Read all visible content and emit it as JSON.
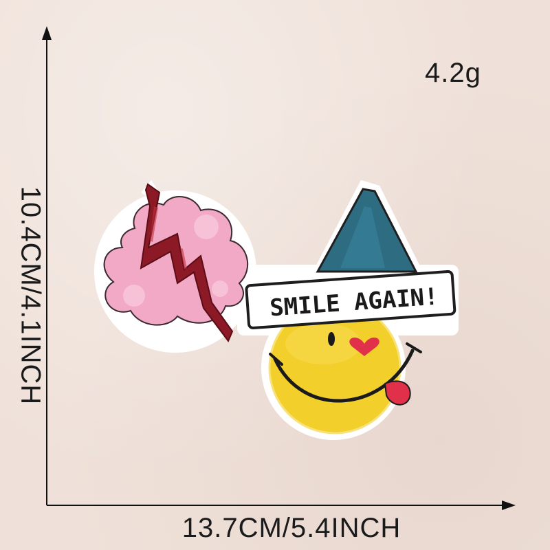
{
  "labels": {
    "weight": "4.2g",
    "width": "13.7CM/5.4INCH",
    "height": "10.4CM/4.1INCH"
  },
  "patch": {
    "banner_text": "SMILE AGAIN!",
    "colors": {
      "cloud_pink": "#f2a9c6",
      "lightning_red": "#8b1a26",
      "hat_blue": "#2e6c82",
      "face_yellow": "#f2cf2b",
      "border_white": "#ffffff",
      "outline_dark": "#1e1e1e"
    }
  }
}
